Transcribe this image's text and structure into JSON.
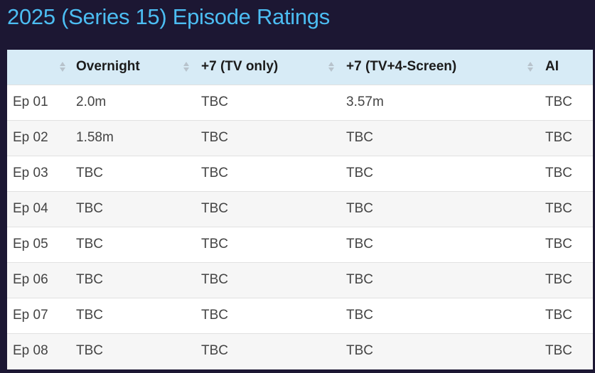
{
  "title": "2025 (Series 15) Episode Ratings",
  "colors": {
    "background": "#1c1733",
    "title": "#4cbdf2",
    "header_bg": "#d7ebf6"
  },
  "table": {
    "headers": [
      "",
      "Overnight",
      "+7 (TV only)",
      "+7 (TV+4-Screen)",
      "AI"
    ],
    "rows": [
      [
        "Ep 01",
        "2.0m",
        "TBC",
        "3.57m",
        "TBC"
      ],
      [
        "Ep 02",
        "1.58m",
        "TBC",
        "TBC",
        "TBC"
      ],
      [
        "Ep 03",
        "TBC",
        "TBC",
        "TBC",
        "TBC"
      ],
      [
        "Ep 04",
        "TBC",
        "TBC",
        "TBC",
        "TBC"
      ],
      [
        "Ep 05",
        "TBC",
        "TBC",
        "TBC",
        "TBC"
      ],
      [
        "Ep 06",
        "TBC",
        "TBC",
        "TBC",
        "TBC"
      ],
      [
        "Ep 07",
        "TBC",
        "TBC",
        "TBC",
        "TBC"
      ],
      [
        "Ep 08",
        "TBC",
        "TBC",
        "TBC",
        "TBC"
      ]
    ]
  }
}
